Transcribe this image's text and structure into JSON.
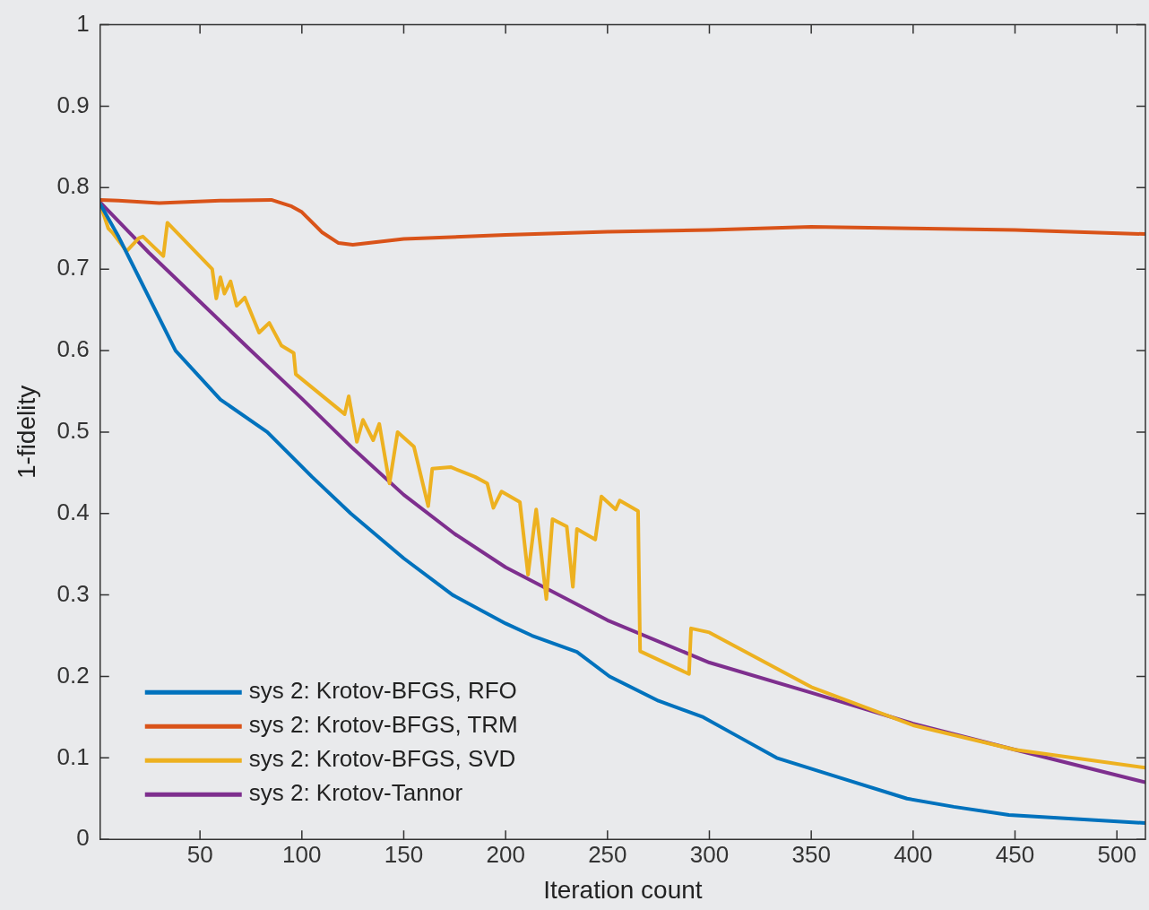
{
  "chart_data": {
    "type": "line",
    "xlabel": "Iteration count",
    "ylabel": "1-fidelity",
    "xlim": [
      1,
      514
    ],
    "ylim": [
      0,
      1
    ],
    "xticks": [
      50,
      100,
      150,
      200,
      250,
      300,
      350,
      400,
      450,
      500
    ],
    "yticks": [
      0,
      0.1,
      0.2,
      0.3,
      0.4,
      0.5,
      0.6,
      0.7,
      0.8,
      0.9,
      1
    ],
    "grid": false,
    "legend": "bottom left",
    "marker": "none",
    "line_style": "solid",
    "series": [
      {
        "name": "sys 2: Krotov-BFGS, RFO",
        "color": "#0072bd",
        "x": [
          1,
          10,
          20,
          38,
          60,
          83,
          105,
          124,
          150,
          174,
          200,
          213,
          235,
          251,
          275,
          297,
          315,
          333,
          365,
          397,
          420,
          447,
          480,
          514
        ],
        "values": [
          0.78,
          0.74,
          0.69,
          0.6,
          0.54,
          0.5,
          0.445,
          0.4,
          0.345,
          0.3,
          0.265,
          0.25,
          0.23,
          0.2,
          0.17,
          0.15,
          0.125,
          0.1,
          0.075,
          0.05,
          0.04,
          0.03,
          0.025,
          0.02
        ]
      },
      {
        "name": "sys 2: Krotov-BFGS, TRM",
        "color": "#d95319",
        "x": [
          1,
          10,
          30,
          60,
          85,
          95,
          100,
          110,
          118,
          125,
          150,
          200,
          250,
          300,
          350,
          400,
          450,
          514
        ],
        "values": [
          0.785,
          0.784,
          0.781,
          0.784,
          0.785,
          0.777,
          0.77,
          0.745,
          0.732,
          0.73,
          0.737,
          0.742,
          0.746,
          0.748,
          0.752,
          0.75,
          0.748,
          0.743
        ]
      },
      {
        "name": "sys 2: Krotov-BFGS, SVD",
        "color": "#edb120",
        "x": [
          1,
          5,
          7,
          14,
          20,
          22,
          32,
          34,
          56,
          58,
          60,
          62,
          65,
          68,
          72,
          79,
          84,
          90,
          96,
          97,
          121,
          123,
          127,
          130,
          135,
          138,
          143,
          147,
          155,
          162,
          164,
          173,
          185,
          191,
          194,
          198,
          207,
          211,
          215,
          220,
          223,
          230,
          233,
          235,
          244,
          247,
          254,
          256,
          265,
          266,
          290,
          291,
          300,
          350,
          400,
          450,
          514
        ],
        "values": [
          0.78,
          0.75,
          0.745,
          0.722,
          0.738,
          0.74,
          0.716,
          0.757,
          0.7,
          0.664,
          0.69,
          0.67,
          0.685,
          0.655,
          0.665,
          0.622,
          0.634,
          0.606,
          0.597,
          0.571,
          0.522,
          0.544,
          0.488,
          0.515,
          0.49,
          0.51,
          0.437,
          0.5,
          0.482,
          0.409,
          0.455,
          0.457,
          0.445,
          0.437,
          0.407,
          0.427,
          0.414,
          0.325,
          0.405,
          0.295,
          0.393,
          0.384,
          0.31,
          0.381,
          0.368,
          0.421,
          0.405,
          0.416,
          0.403,
          0.231,
          0.203,
          0.259,
          0.254,
          0.187,
          0.14,
          0.11,
          0.088
        ]
      },
      {
        "name": "sys 2: Krotov-Tannor",
        "color": "#7e2f8e",
        "x": [
          1,
          25,
          50,
          75,
          100,
          125,
          150,
          175,
          200,
          250,
          300,
          350,
          400,
          450,
          514
        ],
        "values": [
          0.782,
          0.72,
          0.66,
          0.6,
          0.541,
          0.48,
          0.423,
          0.375,
          0.334,
          0.269,
          0.217,
          0.18,
          0.142,
          0.11,
          0.07
        ]
      }
    ]
  }
}
